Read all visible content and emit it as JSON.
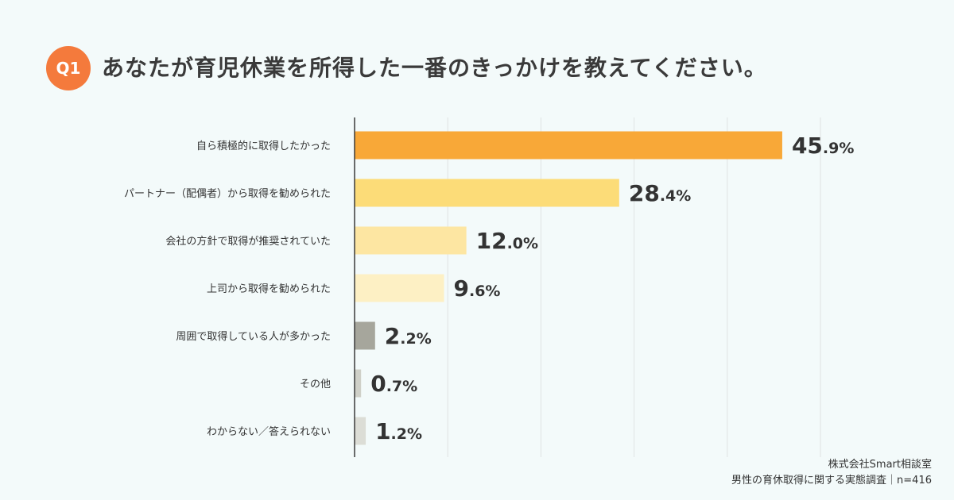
{
  "header": {
    "badge": "Q1",
    "title": "あなたが育児休業を所得した一番のきっかけを教えてください。"
  },
  "chart_data": {
    "type": "bar",
    "orientation": "horizontal",
    "categories": [
      "自ら積極的に取得したかった",
      "パートナー（配偶者）から取得を勧められた",
      "会社の方針で取得が推奨されていた",
      "上司から取得を勧められた",
      "周囲で取得している人が多かった",
      "その他",
      "わからない／答えられない"
    ],
    "values": [
      45.9,
      28.4,
      12.0,
      9.6,
      2.2,
      0.7,
      1.2
    ],
    "value_labels": [
      {
        "int": "45",
        "dec": ".9%"
      },
      {
        "int": "28",
        "dec": ".4%"
      },
      {
        "int": "12",
        "dec": ".0%"
      },
      {
        "int": "9",
        "dec": ".6%"
      },
      {
        "int": "2",
        "dec": ".2%"
      },
      {
        "int": "0",
        "dec": ".7%"
      },
      {
        "int": "1",
        "dec": ".2%"
      }
    ],
    "colors": [
      "#f8a838",
      "#fcdc78",
      "#fde6a2",
      "#fdf0c4",
      "#a6a69c",
      "#cfd0c8",
      "#dcddd6"
    ],
    "xlim": [
      0,
      50
    ],
    "grid": true
  },
  "footer": {
    "company": "株式会社Smart相談室",
    "survey": "男性の育休取得に関する実態調査｜n=416"
  }
}
